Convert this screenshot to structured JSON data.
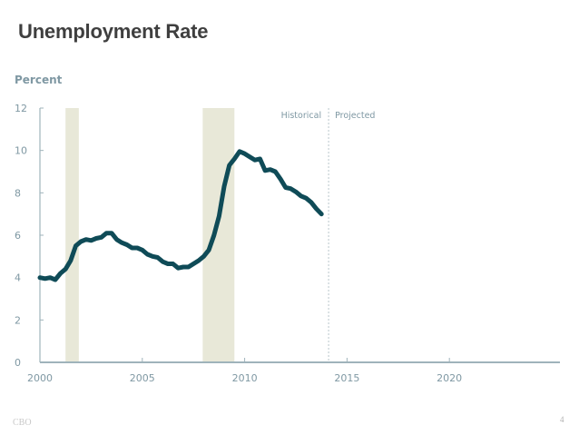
{
  "slide": {
    "title": "Unemployment Rate",
    "footer_left": "CBO",
    "page_number": "4"
  },
  "colors": {
    "line": "#0f4b57",
    "recession": "#e8e8d8",
    "axis": "#9fb3bb",
    "tick_label": "#7f98a3",
    "divider": "#b9c6cb"
  },
  "chart_data": {
    "type": "line",
    "title": "Unemployment Rate",
    "ylabel": "Percent",
    "xlabel": "",
    "xlim": [
      2000,
      2025.4
    ],
    "ylim": [
      0,
      12
    ],
    "x_ticks": [
      2000,
      2005,
      2010,
      2015,
      2020
    ],
    "y_ticks": [
      0,
      2,
      4,
      6,
      8,
      10,
      12
    ],
    "grid": false,
    "annotations": [
      {
        "text": "Historical",
        "x": 2014.1,
        "side": "left"
      },
      {
        "text": "Projected",
        "x": 2014.1,
        "side": "right"
      }
    ],
    "divider_x": 2014.1,
    "recession_bands": [
      {
        "start": 2001.25,
        "end": 2001.9
      },
      {
        "start": 2007.95,
        "end": 2009.5
      }
    ],
    "series": [
      {
        "name": "Unemployment Rate (Historical)",
        "x": [
          2000.0,
          2000.25,
          2000.5,
          2000.75,
          2001.0,
          2001.25,
          2001.5,
          2001.75,
          2002.0,
          2002.25,
          2002.5,
          2002.75,
          2003.0,
          2003.25,
          2003.5,
          2003.75,
          2004.0,
          2004.25,
          2004.5,
          2004.75,
          2005.0,
          2005.25,
          2005.5,
          2005.75,
          2006.0,
          2006.25,
          2006.5,
          2006.75,
          2007.0,
          2007.25,
          2007.5,
          2007.75,
          2008.0,
          2008.25,
          2008.5,
          2008.75,
          2009.0,
          2009.25,
          2009.5,
          2009.75,
          2010.0,
          2010.25,
          2010.5,
          2010.75,
          2011.0,
          2011.25,
          2011.5,
          2011.75,
          2012.0,
          2012.25,
          2012.5,
          2012.75,
          2013.0,
          2013.25,
          2013.5,
          2013.75
        ],
        "values": [
          4.0,
          3.95,
          4.0,
          3.9,
          4.2,
          4.4,
          4.8,
          5.5,
          5.7,
          5.8,
          5.75,
          5.85,
          5.9,
          6.1,
          6.1,
          5.8,
          5.65,
          5.55,
          5.4,
          5.4,
          5.3,
          5.1,
          5.0,
          4.95,
          4.75,
          4.65,
          4.65,
          4.45,
          4.5,
          4.5,
          4.65,
          4.8,
          5.0,
          5.3,
          6.0,
          6.9,
          8.3,
          9.3,
          9.6,
          9.95,
          9.85,
          9.7,
          9.55,
          9.6,
          9.05,
          9.1,
          9.0,
          8.65,
          8.25,
          8.2,
          8.05,
          7.85,
          7.75,
          7.55,
          7.25,
          7.0
        ]
      }
    ]
  }
}
